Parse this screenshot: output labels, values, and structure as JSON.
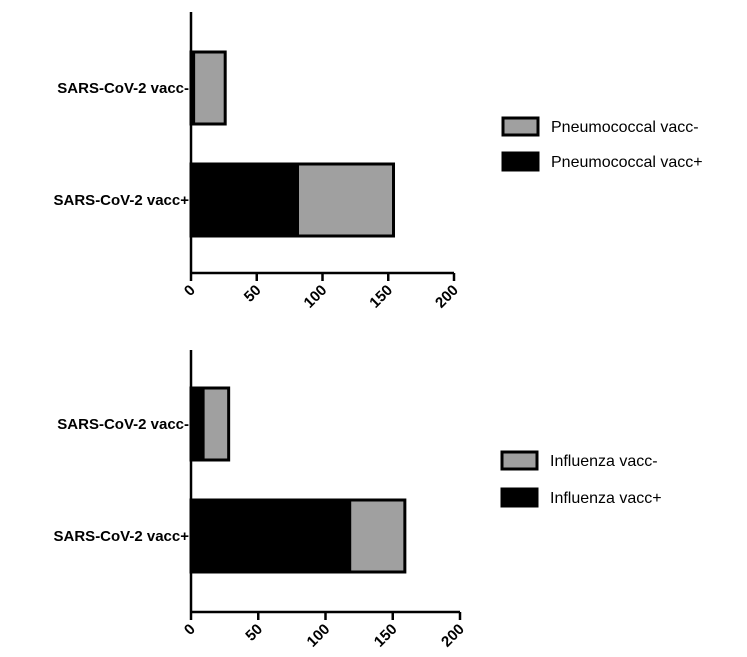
{
  "chart_data": [
    {
      "type": "bar",
      "orientation": "horizontal",
      "stacked": true,
      "categories": [
        "SARS-CoV-2 vacc-",
        "SARS-CoV-2 vacc+"
      ],
      "series": [
        {
          "name": "Pneumococcal vacc+",
          "values": [
            2,
            81
          ],
          "color": "#000000"
        },
        {
          "name": "Pneumococcal vacc-",
          "values": [
            24,
            73
          ],
          "color": "#a0a0a0"
        }
      ],
      "xlim": [
        0,
        200
      ],
      "xticks": [
        0,
        50,
        100,
        150,
        200
      ],
      "legend_position": "right",
      "legend_order": [
        "Pneumococcal vacc-",
        "Pneumococcal vacc+"
      ],
      "grid": false
    },
    {
      "type": "bar",
      "orientation": "horizontal",
      "stacked": true,
      "categories": [
        "SARS-CoV-2 vacc-",
        "SARS-CoV-2 vacc+"
      ],
      "series": [
        {
          "name": "Influenza vacc+",
          "values": [
            9,
            118
          ],
          "color": "#000000"
        },
        {
          "name": "Influenza vacc-",
          "values": [
            19,
            41
          ],
          "color": "#a0a0a0"
        }
      ],
      "xlim": [
        0,
        200
      ],
      "xticks": [
        0,
        50,
        100,
        150,
        200
      ],
      "legend_position": "right",
      "legend_order": [
        "Influenza vacc-",
        "Influenza vacc+"
      ],
      "grid": false
    }
  ]
}
